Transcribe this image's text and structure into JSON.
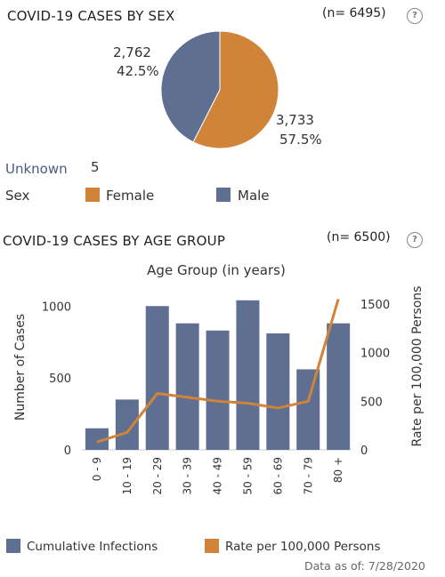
{
  "colors": {
    "male": "#5f6f92",
    "female": "#d0843a",
    "bar": "#5f6f92",
    "line": "#d0843a"
  },
  "sex_section": {
    "title": "COVID-19 CASES BY SEX",
    "count": "(n= 6495)",
    "help": "?",
    "male_label": {
      "count": "2,762",
      "pct": "42.5%"
    },
    "female_label": {
      "count": "3,733",
      "pct": "57.5%"
    },
    "unknown_label": "Unknown",
    "unknown_value": "5",
    "legend_title": "Sex",
    "legend": [
      "Female",
      "Male"
    ]
  },
  "age_section": {
    "title": "COVID-19 CASES BY AGE GROUP",
    "count": "(n= 6500)",
    "help": "?",
    "legend": [
      "Cumulative Infections",
      "Rate per 100,000 Persons"
    ],
    "footer": "Data as of:  7/28/2020"
  },
  "chart_data": [
    {
      "type": "pie",
      "title": "COVID-19 CASES BY SEX",
      "categories": [
        "Male",
        "Female"
      ],
      "values": [
        2762,
        3733
      ],
      "percentages": [
        42.5,
        57.5
      ]
    },
    {
      "type": "bar",
      "title": "COVID-19 CASES BY AGE GROUP",
      "xlabel": "Age Group (in years)",
      "ylabel": "Number of Cases",
      "y2label": "Rate per 100,000 Persons",
      "categories": [
        "0 - 9",
        "10 - 19",
        "20 - 29",
        "30 - 39",
        "40 - 49",
        "50 - 59",
        "60 - 69",
        "70 - 79",
        "80 +"
      ],
      "ylim": [
        0,
        1150
      ],
      "y2lim": [
        0,
        1700
      ],
      "yticks": [
        0,
        500,
        1000
      ],
      "y2ticks": [
        0,
        500,
        1000,
        1500
      ],
      "series": [
        {
          "name": "Cumulative Infections",
          "type": "bar",
          "axis": "left",
          "values": [
            150,
            350,
            1000,
            880,
            830,
            1040,
            810,
            560,
            880
          ]
        },
        {
          "name": "Rate per 100,000 Persons",
          "type": "line",
          "axis": "right",
          "values": [
            80,
            180,
            580,
            540,
            500,
            480,
            430,
            500,
            1550
          ]
        }
      ]
    }
  ]
}
